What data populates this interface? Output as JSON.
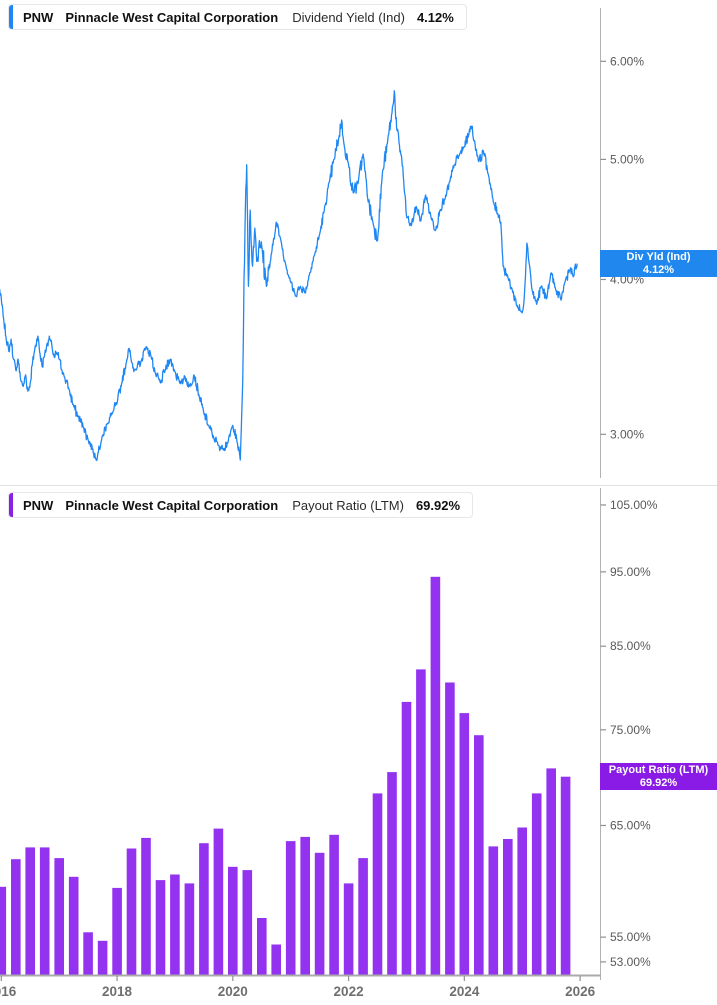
{
  "panels": [
    {
      "header": {
        "ticker": "PNW",
        "company": "Pinnacle West Capital Corporation",
        "metric": "Dividend Yield (Ind)",
        "value": "4.12%"
      },
      "accent_color": "#1f87f4",
      "value_label": {
        "line1": "Div Yld (Ind)",
        "line2": "4.12%",
        "value": 4.12,
        "color": "#2087ee"
      }
    },
    {
      "header": {
        "ticker": "PNW",
        "company": "Pinnacle West Capital Corporation",
        "metric": "Payout Ratio (LTM)",
        "value": "69.92%"
      },
      "accent_color": "#8a1fe8",
      "value_label": {
        "line1": "Payout Ratio (LTM)",
        "line2": "69.92%",
        "value": 69.92,
        "color": "#8a1ae6"
      }
    }
  ],
  "x_axis": {
    "tick_years": [
      2016,
      2018,
      2020,
      2022,
      2024,
      2026
    ],
    "tick_labels": [
      "2016",
      "2018",
      "2020",
      "2022",
      "2024",
      "2026"
    ]
  },
  "chart_data": [
    {
      "type": "line",
      "title": "PNW Pinnacle West Capital Corporation Dividend Yield (Ind)",
      "series_name": "Div Yld (Ind)",
      "current_value": 4.12,
      "unit": "%",
      "color": "#1f87f4",
      "yscale": "log",
      "ylim": [
        2.77,
        6.6
      ],
      "yticks": [
        6,
        5,
        4,
        3
      ],
      "ytick_labels": [
        "6.00%",
        "5.00%",
        "4.00%",
        "3.00%"
      ],
      "xlim": [
        2015.97,
        2026.35
      ],
      "grid": false,
      "legend_position": "right-axis-flag",
      "texture_noise": 0.01,
      "points": [
        [
          2015.97,
          3.93
        ],
        [
          2016.04,
          3.72
        ],
        [
          2016.08,
          3.6
        ],
        [
          2016.13,
          3.5
        ],
        [
          2016.17,
          3.58
        ],
        [
          2016.21,
          3.45
        ],
        [
          2016.25,
          3.38
        ],
        [
          2016.29,
          3.45
        ],
        [
          2016.33,
          3.33
        ],
        [
          2016.38,
          3.28
        ],
        [
          2016.42,
          3.35
        ],
        [
          2016.46,
          3.25
        ],
        [
          2016.5,
          3.3
        ],
        [
          2016.54,
          3.43
        ],
        [
          2016.58,
          3.52
        ],
        [
          2016.63,
          3.6
        ],
        [
          2016.67,
          3.48
        ],
        [
          2016.71,
          3.4
        ],
        [
          2016.75,
          3.48
        ],
        [
          2016.79,
          3.55
        ],
        [
          2016.83,
          3.6
        ],
        [
          2016.88,
          3.52
        ],
        [
          2016.92,
          3.46
        ],
        [
          2016.96,
          3.49
        ],
        [
          2017.0,
          3.45
        ],
        [
          2017.08,
          3.35
        ],
        [
          2017.17,
          3.26
        ],
        [
          2017.25,
          3.16
        ],
        [
          2017.33,
          3.1
        ],
        [
          2017.42,
          3.04
        ],
        [
          2017.5,
          2.97
        ],
        [
          2017.58,
          2.92
        ],
        [
          2017.63,
          2.87
        ],
        [
          2017.67,
          2.9
        ],
        [
          2017.75,
          2.99
        ],
        [
          2017.83,
          3.06
        ],
        [
          2017.92,
          3.12
        ],
        [
          2018.0,
          3.18
        ],
        [
          2018.08,
          3.3
        ],
        [
          2018.17,
          3.45
        ],
        [
          2018.21,
          3.52
        ],
        [
          2018.25,
          3.43
        ],
        [
          2018.33,
          3.38
        ],
        [
          2018.42,
          3.44
        ],
        [
          2018.5,
          3.53
        ],
        [
          2018.58,
          3.48
        ],
        [
          2018.67,
          3.35
        ],
        [
          2018.75,
          3.3
        ],
        [
          2018.83,
          3.38
        ],
        [
          2018.92,
          3.45
        ],
        [
          2019.0,
          3.37
        ],
        [
          2019.08,
          3.3
        ],
        [
          2019.17,
          3.34
        ],
        [
          2019.25,
          3.28
        ],
        [
          2019.33,
          3.35
        ],
        [
          2019.42,
          3.22
        ],
        [
          2019.5,
          3.12
        ],
        [
          2019.58,
          3.05
        ],
        [
          2019.67,
          2.98
        ],
        [
          2019.75,
          2.94
        ],
        [
          2019.83,
          2.92
        ],
        [
          2019.92,
          2.96
        ],
        [
          2020.0,
          3.05
        ],
        [
          2020.08,
          2.95
        ],
        [
          2020.13,
          2.86
        ],
        [
          2020.17,
          3.3
        ],
        [
          2020.21,
          4.4
        ],
        [
          2020.24,
          4.95
        ],
        [
          2020.27,
          3.95
        ],
        [
          2020.3,
          4.55
        ],
        [
          2020.34,
          4.1
        ],
        [
          2020.38,
          4.4
        ],
        [
          2020.42,
          4.15
        ],
        [
          2020.46,
          4.3
        ],
        [
          2020.5,
          4.25
        ],
        [
          2020.58,
          3.95
        ],
        [
          2020.67,
          4.2
        ],
        [
          2020.75,
          4.45
        ],
        [
          2020.83,
          4.3
        ],
        [
          2020.92,
          4.1
        ],
        [
          2021.0,
          3.98
        ],
        [
          2021.08,
          3.88
        ],
        [
          2021.17,
          3.95
        ],
        [
          2021.25,
          3.9
        ],
        [
          2021.33,
          4.05
        ],
        [
          2021.42,
          4.2
        ],
        [
          2021.5,
          4.35
        ],
        [
          2021.58,
          4.55
        ],
        [
          2021.67,
          4.8
        ],
        [
          2021.75,
          5.0
        ],
        [
          2021.83,
          5.2
        ],
        [
          2021.88,
          5.38
        ],
        [
          2021.92,
          5.15
        ],
        [
          2022.0,
          4.95
        ],
        [
          2022.08,
          4.7
        ],
        [
          2022.17,
          4.8
        ],
        [
          2022.25,
          5.05
        ],
        [
          2022.33,
          4.65
        ],
        [
          2022.42,
          4.45
        ],
        [
          2022.5,
          4.3
        ],
        [
          2022.58,
          4.85
        ],
        [
          2022.67,
          5.15
        ],
        [
          2022.75,
          5.45
        ],
        [
          2022.79,
          5.68
        ],
        [
          2022.83,
          5.3
        ],
        [
          2022.92,
          5.0
        ],
        [
          2023.0,
          4.5
        ],
        [
          2023.08,
          4.42
        ],
        [
          2023.17,
          4.58
        ],
        [
          2023.25,
          4.46
        ],
        [
          2023.33,
          4.68
        ],
        [
          2023.42,
          4.5
        ],
        [
          2023.5,
          4.38
        ],
        [
          2023.58,
          4.55
        ],
        [
          2023.67,
          4.65
        ],
        [
          2023.75,
          4.8
        ],
        [
          2023.83,
          4.95
        ],
        [
          2023.92,
          5.05
        ],
        [
          2024.0,
          5.12
        ],
        [
          2024.08,
          5.25
        ],
        [
          2024.13,
          5.32
        ],
        [
          2024.17,
          5.18
        ],
        [
          2024.25,
          4.98
        ],
        [
          2024.33,
          5.08
        ],
        [
          2024.42,
          4.85
        ],
        [
          2024.5,
          4.62
        ],
        [
          2024.58,
          4.52
        ],
        [
          2024.63,
          4.45
        ],
        [
          2024.67,
          4.1
        ],
        [
          2024.75,
          4.02
        ],
        [
          2024.83,
          3.92
        ],
        [
          2024.92,
          3.8
        ],
        [
          2025.0,
          3.76
        ],
        [
          2025.04,
          3.9
        ],
        [
          2025.08,
          4.28
        ],
        [
          2025.13,
          4.1
        ],
        [
          2025.17,
          3.92
        ],
        [
          2025.25,
          3.82
        ],
        [
          2025.33,
          3.95
        ],
        [
          2025.42,
          3.86
        ],
        [
          2025.5,
          4.05
        ],
        [
          2025.58,
          3.92
        ],
        [
          2025.67,
          3.85
        ],
        [
          2025.75,
          4.0
        ],
        [
          2025.83,
          4.08
        ],
        [
          2025.88,
          4.02
        ],
        [
          2025.95,
          4.12
        ]
      ]
    },
    {
      "type": "bar",
      "title": "PNW Pinnacle West Capital Corporation Payout Ratio (LTM)",
      "series_name": "Payout Ratio (LTM)",
      "current_value": 69.92,
      "unit": "%",
      "color": "#9333f0",
      "yscale": "log",
      "ylim": [
        52,
        107.7
      ],
      "yticks": [
        105,
        95,
        85,
        75,
        65,
        55,
        53
      ],
      "ytick_labels": [
        "105.00%",
        "95.00%",
        "85.00%",
        "75.00%",
        "65.00%",
        "55.00%",
        "53.00%"
      ],
      "grid": false,
      "legend_position": "right-axis-flag",
      "categories": [
        "2016Q1",
        "2016Q2",
        "2016Q3",
        "2016Q4",
        "2017Q1",
        "2017Q2",
        "2017Q3",
        "2017Q4",
        "2018Q1",
        "2018Q2",
        "2018Q3",
        "2018Q4",
        "2019Q1",
        "2019Q2",
        "2019Q3",
        "2019Q4",
        "2020Q1",
        "2020Q2",
        "2020Q3",
        "2020Q4",
        "2021Q1",
        "2021Q2",
        "2021Q3",
        "2021Q4",
        "2022Q1",
        "2022Q2",
        "2022Q3",
        "2022Q4",
        "2023Q1",
        "2023Q2",
        "2023Q3",
        "2023Q4",
        "2024Q1",
        "2024Q2",
        "2024Q3",
        "2024Q4",
        "2025Q1",
        "2025Q2",
        "2025Q3",
        "2025Q4"
      ],
      "values": [
        59.3,
        61.8,
        62.9,
        62.9,
        61.9,
        60.2,
        55.4,
        54.7,
        59.2,
        62.8,
        63.8,
        59.9,
        60.4,
        59.6,
        63.3,
        64.7,
        61.1,
        60.8,
        56.6,
        54.4,
        63.5,
        63.9,
        62.4,
        64.1,
        59.6,
        61.9,
        68.2,
        70.4,
        78.2,
        82.1,
        94.3,
        80.5,
        76.9,
        74.4,
        63.0,
        63.7,
        64.8,
        68.2,
        70.8,
        69.92
      ]
    }
  ]
}
